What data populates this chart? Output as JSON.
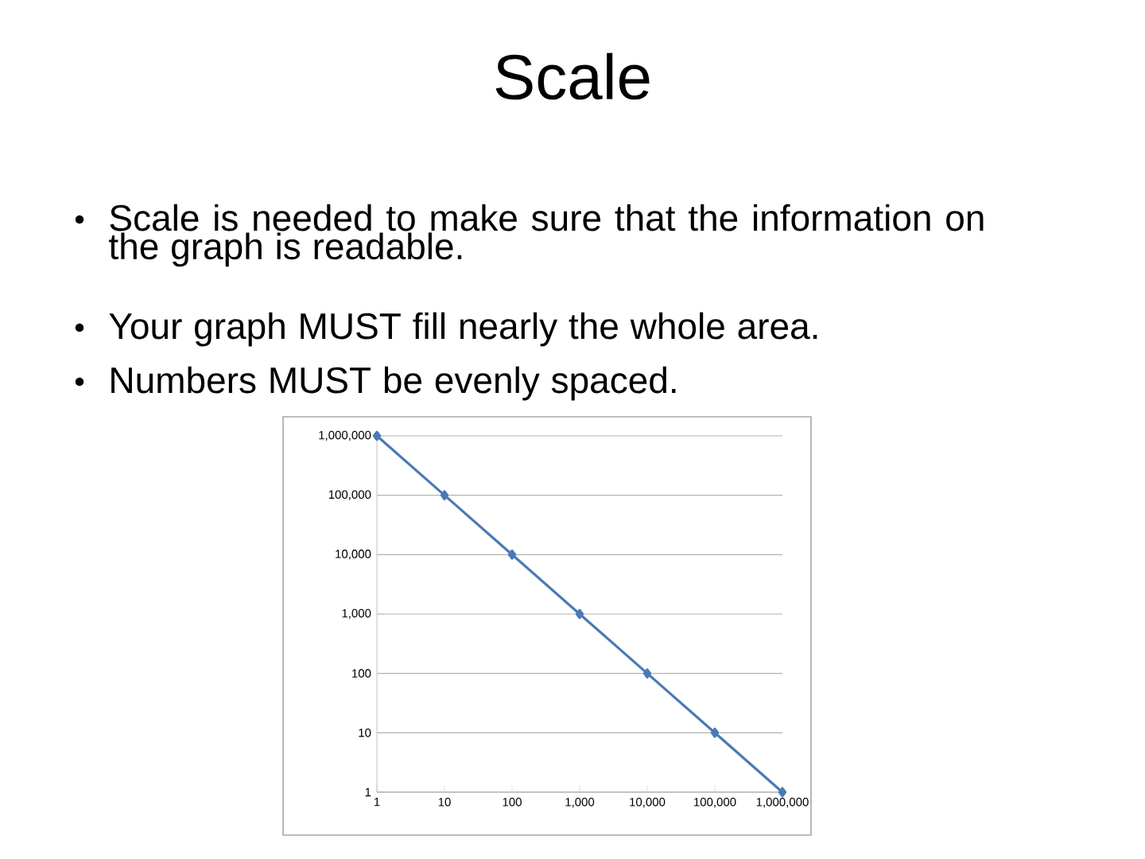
{
  "chart_data": {
    "type": "line",
    "title": "Scale",
    "annotations": [
      "Scale is needed to make sure that the information on the graph is readable.",
      "Your graph MUST fill nearly the whole area.",
      "Numbers MUST be evenly spaced."
    ],
    "categories": [
      "1",
      "10",
      "100",
      "1,000",
      "10,000",
      "100,000",
      "1,000,000"
    ],
    "series": [
      {
        "color": "#4a7ab5",
        "values": [
          1000000,
          100000,
          10000,
          1000,
          100,
          10,
          1
        ]
      }
    ],
    "log": "y",
    "ylim": [
      1,
      1000000
    ],
    "yticks": [
      1,
      10,
      100,
      {
        "value": 1000,
        "label": "1,000"
      },
      {
        "value": 10000,
        "label": "10,000"
      },
      {
        "value": 100000,
        "label": "100,000"
      },
      {
        "value": 1000000,
        "label": "1,000,000"
      }
    ],
    "grid": "y",
    "marker": "diamond",
    "line_style": "solid"
  }
}
